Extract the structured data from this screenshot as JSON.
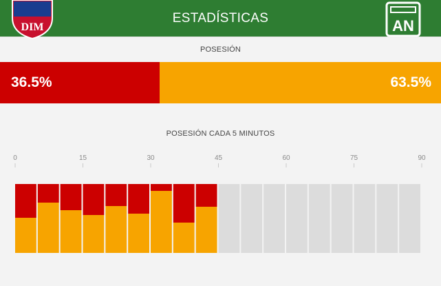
{
  "header": {
    "title": "ESTADÍSTICAS",
    "home_logo_text": "DIM",
    "away_logo_text": "AN"
  },
  "possession": {
    "title": "POSESIÓN",
    "home_label": "36.5%",
    "away_label": "63.5%",
    "home_pct": 36.5,
    "away_pct": 63.5
  },
  "chart_title": "POSESIÓN CADA 5 MINUTOS",
  "colors": {
    "header": "#2e7d32",
    "home": "#cc0000",
    "away": "#f7a400",
    "empty": "#dcdcdc"
  },
  "chart_data": {
    "type": "bar",
    "stacked": true,
    "x_ticks": [
      "0",
      "15",
      "30",
      "45",
      "60",
      "75",
      "90"
    ],
    "intervals": [
      "0-5",
      "5-10",
      "10-15",
      "15-20",
      "20-25",
      "25-30",
      "30-35",
      "35-40",
      "40-45",
      "45-50",
      "50-55",
      "55-60",
      "60-65",
      "65-70",
      "70-75",
      "75-80",
      "80-85",
      "85-90"
    ],
    "series": [
      {
        "name": "home",
        "values": [
          49,
          27,
          38,
          45,
          32,
          43,
          10,
          56,
          33,
          null,
          null,
          null,
          null,
          null,
          null,
          null,
          null,
          null
        ]
      },
      {
        "name": "away",
        "values": [
          51,
          73,
          62,
          55,
          68,
          57,
          90,
          44,
          67,
          null,
          null,
          null,
          null,
          null,
          null,
          null,
          null,
          null
        ]
      }
    ],
    "ylim": [
      0,
      100
    ],
    "title": "POSESIÓN CADA 5 MINUTOS"
  }
}
